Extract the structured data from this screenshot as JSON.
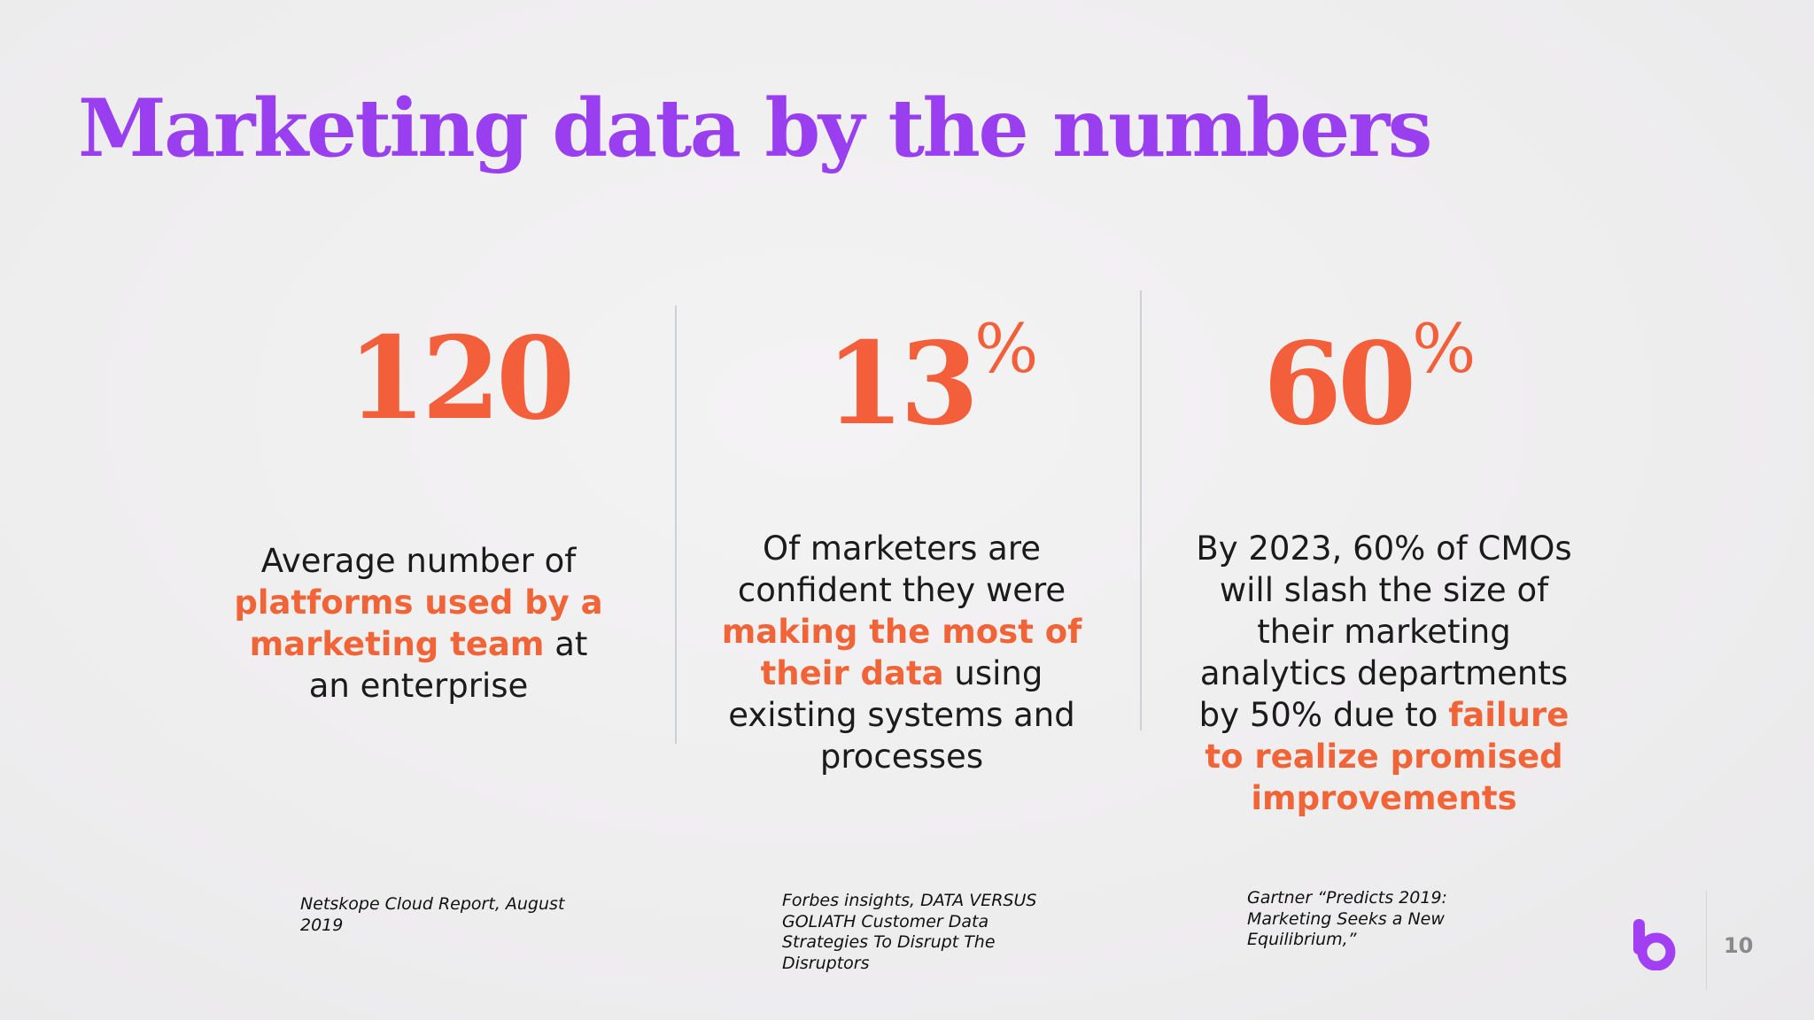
{
  "slide": {
    "title": "Marketing data by the numbers",
    "page_number": "10"
  },
  "stats": [
    {
      "value": "120",
      "suffix": "",
      "desc_before": "Average number of ",
      "desc_highlight": "platforms used by a marketing team",
      "desc_after": " at an enterprise",
      "source": "Netskope Cloud Report, August 2019"
    },
    {
      "value": "13",
      "suffix": "%",
      "desc_before": "Of marketers are confident they were ",
      "desc_highlight": "making the most of their data",
      "desc_after": " using existing systems and processes",
      "source": "Forbes insights,  DATA VERSUS GOLIATH Customer Data Strategies To Disrupt The Disruptors"
    },
    {
      "value": "60",
      "suffix": "%",
      "desc_before": "By 2023, 60% of CMOs will slash the size of their marketing analytics departments by 50% due to ",
      "desc_highlight": "failure to realize promised improvements",
      "desc_after": "",
      "source": "Gartner “Predicts 2019: Marketing Seeks a New Equilibrium,”"
    }
  ],
  "colors": {
    "title": "#9a3ff0",
    "accent": "#f25f3a",
    "logo": "#a23ff2"
  },
  "logo": {
    "icon": "brand-b-logo"
  }
}
